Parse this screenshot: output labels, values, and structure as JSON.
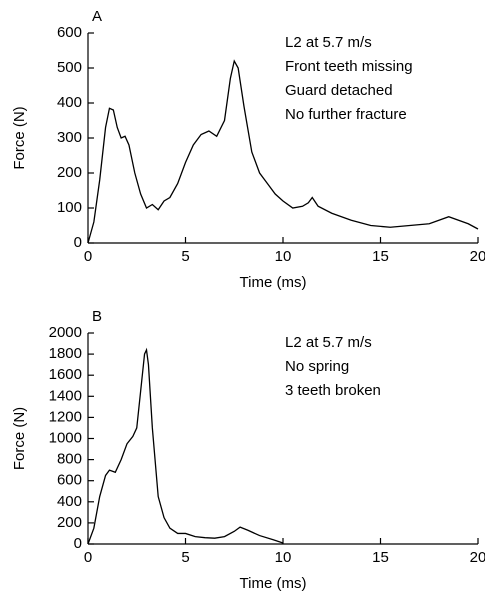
{
  "chart_data": [
    {
      "type": "line",
      "title": "A",
      "x_label": "Time (ms)",
      "y_label": "Force (N)",
      "annotations": [
        "L2 at 5.7 m/s",
        "Front teeth missing",
        "Guard detached",
        "No further fracture"
      ],
      "color": "#000000",
      "x": [
        0,
        0.3,
        0.6,
        0.9,
        1.1,
        1.3,
        1.5,
        1.7,
        1.9,
        2.1,
        2.4,
        2.7,
        3.0,
        3.3,
        3.6,
        3.9,
        4.2,
        4.6,
        5.0,
        5.4,
        5.8,
        6.2,
        6.6,
        7.0,
        7.3,
        7.5,
        7.7,
        8.0,
        8.4,
        8.8,
        9.2,
        9.6,
        10.0,
        10.5,
        11.0,
        11.3,
        11.5,
        11.8,
        12.5,
        13.5,
        14.5,
        15.5,
        16.5,
        17.5,
        18.5,
        19.5,
        20
      ],
      "values": [
        0,
        60,
        180,
        330,
        385,
        380,
        330,
        300,
        305,
        280,
        200,
        140,
        100,
        110,
        95,
        120,
        130,
        170,
        230,
        280,
        310,
        320,
        305,
        350,
        470,
        520,
        500,
        390,
        260,
        200,
        170,
        140,
        120,
        100,
        105,
        115,
        130,
        105,
        85,
        65,
        50,
        45,
        50,
        55,
        75,
        55,
        40
      ],
      "xlim": [
        0,
        20
      ],
      "xticks": [
        0,
        5,
        10,
        15,
        20
      ],
      "ylim": [
        0,
        600
      ],
      "yticks": [
        0,
        100,
        200,
        300,
        400,
        500,
        600
      ]
    },
    {
      "type": "line",
      "title": "B",
      "x_label": "Time (ms)",
      "y_label": "Force (N)",
      "annotations": [
        "L2 at 5.7 m/s",
        "No spring",
        "3 teeth broken"
      ],
      "color": "#000000",
      "x": [
        0,
        0.3,
        0.6,
        0.9,
        1.1,
        1.4,
        1.7,
        2.0,
        2.3,
        2.5,
        2.7,
        2.9,
        3.0,
        3.1,
        3.3,
        3.6,
        3.9,
        4.2,
        4.6,
        5.0,
        5.5,
        6.0,
        6.5,
        7.0,
        7.5,
        7.8,
        8.2,
        8.8,
        9.5,
        10
      ],
      "values": [
        0,
        150,
        450,
        650,
        700,
        680,
        800,
        950,
        1020,
        1100,
        1450,
        1800,
        1840,
        1700,
        1100,
        450,
        250,
        150,
        100,
        100,
        70,
        60,
        55,
        70,
        120,
        160,
        130,
        80,
        40,
        10
      ],
      "xlim": [
        0,
        20
      ],
      "xticks": [
        0,
        5,
        10,
        15,
        20
      ],
      "ylim": [
        0,
        2000
      ],
      "yticks": [
        0,
        200,
        400,
        600,
        800,
        1000,
        1200,
        1400,
        1600,
        1800,
        2000
      ]
    }
  ]
}
